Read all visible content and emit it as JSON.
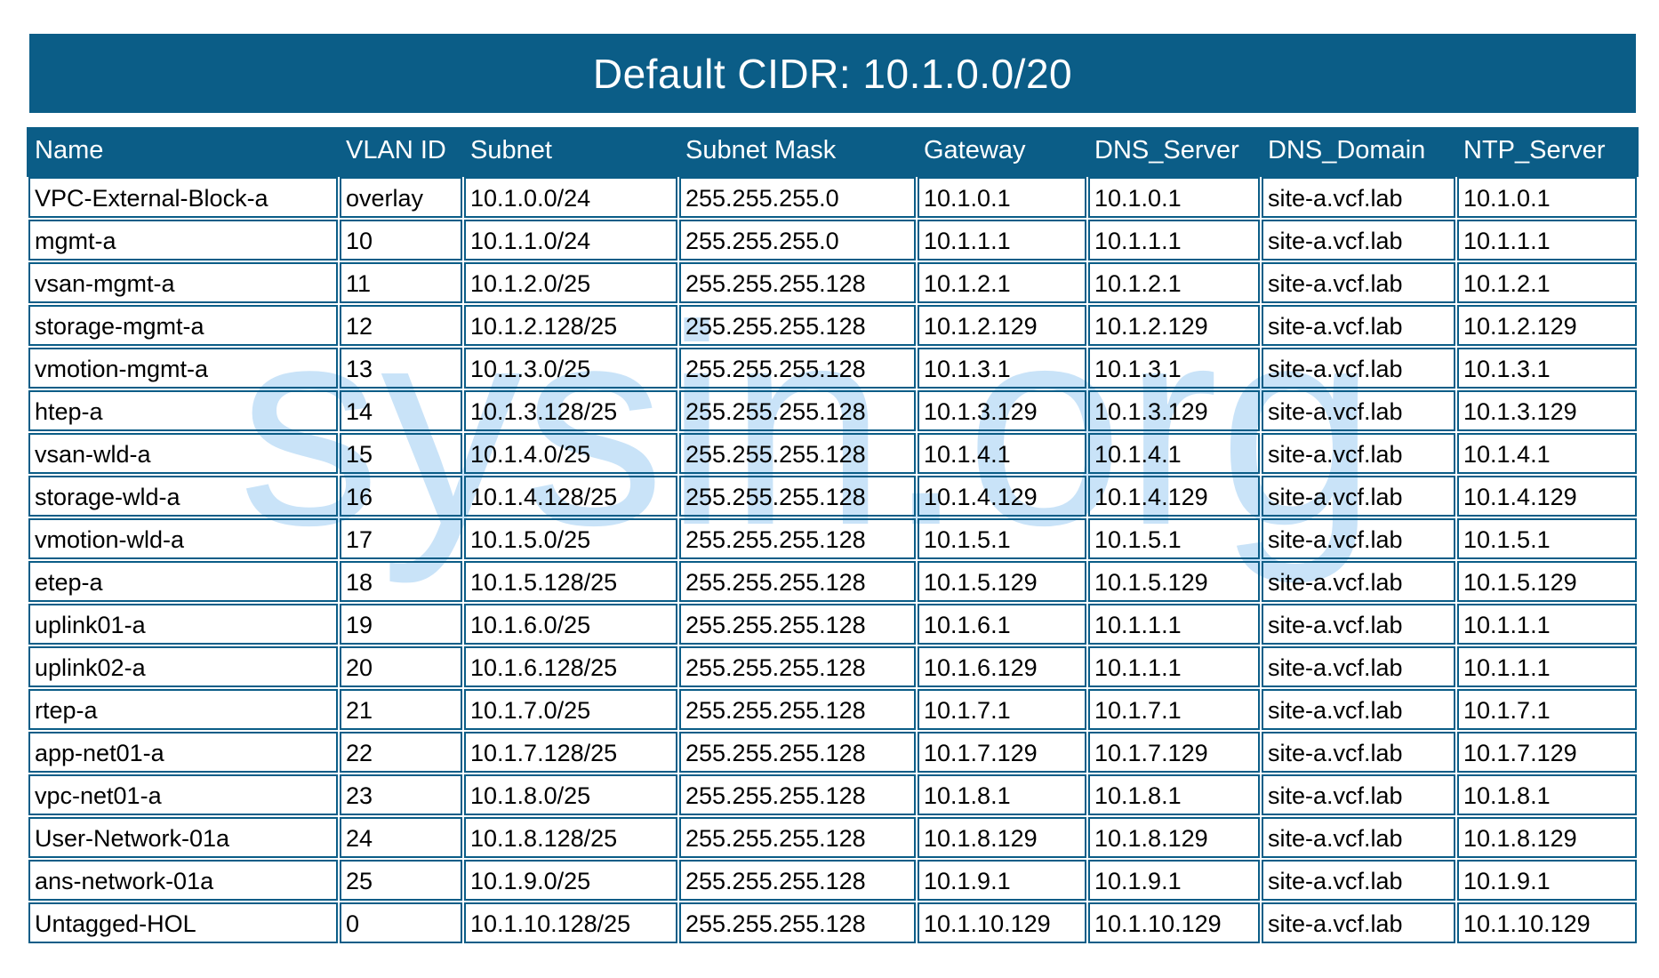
{
  "title": "Default CIDR: 10.1.0.0/20",
  "watermark": {
    "text": "sysin.org"
  },
  "colors": {
    "accent_blue": "#0b5d87",
    "watermark_blue": "#c9e3f8",
    "header_text": "#ffffff",
    "cell_text": "#000000"
  },
  "table": {
    "columns": [
      "Name",
      "VLAN ID",
      "Subnet",
      "Subnet Mask",
      "Gateway",
      "DNS_Server",
      "DNS_Domain",
      "NTP_Server"
    ],
    "rows": [
      [
        "VPC-External-Block-a",
        "overlay",
        "10.1.0.0/24",
        "255.255.255.0",
        "10.1.0.1",
        "10.1.0.1",
        "site-a.vcf.lab",
        "10.1.0.1"
      ],
      [
        "mgmt-a",
        "10",
        "10.1.1.0/24",
        "255.255.255.0",
        "10.1.1.1",
        "10.1.1.1",
        "site-a.vcf.lab",
        "10.1.1.1"
      ],
      [
        "vsan-mgmt-a",
        "11",
        "10.1.2.0/25",
        "255.255.255.128",
        "10.1.2.1",
        "10.1.2.1",
        "site-a.vcf.lab",
        "10.1.2.1"
      ],
      [
        "storage-mgmt-a",
        "12",
        "10.1.2.128/25",
        "255.255.255.128",
        "10.1.2.129",
        "10.1.2.129",
        "site-a.vcf.lab",
        "10.1.2.129"
      ],
      [
        "vmotion-mgmt-a",
        "13",
        "10.1.3.0/25",
        "255.255.255.128",
        "10.1.3.1",
        "10.1.3.1",
        "site-a.vcf.lab",
        "10.1.3.1"
      ],
      [
        "htep-a",
        "14",
        "10.1.3.128/25",
        "255.255.255.128",
        "10.1.3.129",
        "10.1.3.129",
        "site-a.vcf.lab",
        "10.1.3.129"
      ],
      [
        "vsan-wld-a",
        "15",
        "10.1.4.0/25",
        "255.255.255.128",
        "10.1.4.1",
        "10.1.4.1",
        "site-a.vcf.lab",
        "10.1.4.1"
      ],
      [
        "storage-wld-a",
        "16",
        "10.1.4.128/25",
        "255.255.255.128",
        "10.1.4.129",
        "10.1.4.129",
        "site-a.vcf.lab",
        "10.1.4.129"
      ],
      [
        "vmotion-wld-a",
        "17",
        "10.1.5.0/25",
        "255.255.255.128",
        "10.1.5.1",
        "10.1.5.1",
        "site-a.vcf.lab",
        "10.1.5.1"
      ],
      [
        "etep-a",
        "18",
        "10.1.5.128/25",
        "255.255.255.128",
        "10.1.5.129",
        "10.1.5.129",
        "site-a.vcf.lab",
        "10.1.5.129"
      ],
      [
        "uplink01-a",
        "19",
        "10.1.6.0/25",
        "255.255.255.128",
        "10.1.6.1",
        "10.1.1.1",
        "site-a.vcf.lab",
        "10.1.1.1"
      ],
      [
        "uplink02-a",
        "20",
        "10.1.6.128/25",
        "255.255.255.128",
        "10.1.6.129",
        "10.1.1.1",
        "site-a.vcf.lab",
        "10.1.1.1"
      ],
      [
        "rtep-a",
        "21",
        "10.1.7.0/25",
        "255.255.255.128",
        "10.1.7.1",
        "10.1.7.1",
        "site-a.vcf.lab",
        "10.1.7.1"
      ],
      [
        "app-net01-a",
        "22",
        "10.1.7.128/25",
        "255.255.255.128",
        "10.1.7.129",
        "10.1.7.129",
        "site-a.vcf.lab",
        "10.1.7.129"
      ],
      [
        "vpc-net01-a",
        "23",
        "10.1.8.0/25",
        "255.255.255.128",
        "10.1.8.1",
        "10.1.8.1",
        "site-a.vcf.lab",
        "10.1.8.1"
      ],
      [
        "User-Network-01a",
        "24",
        "10.1.8.128/25",
        "255.255.255.128",
        "10.1.8.129",
        "10.1.8.129",
        "site-a.vcf.lab",
        "10.1.8.129"
      ],
      [
        "ans-network-01a",
        "25",
        "10.1.9.0/25",
        "255.255.255.128",
        "10.1.9.1",
        "10.1.9.1",
        "site-a.vcf.lab",
        "10.1.9.1"
      ],
      [
        "Untagged-HOL",
        "0",
        "10.1.10.128/25",
        "255.255.255.128",
        "10.1.10.129",
        "10.1.10.129",
        "site-a.vcf.lab",
        "10.1.10.129"
      ]
    ]
  }
}
